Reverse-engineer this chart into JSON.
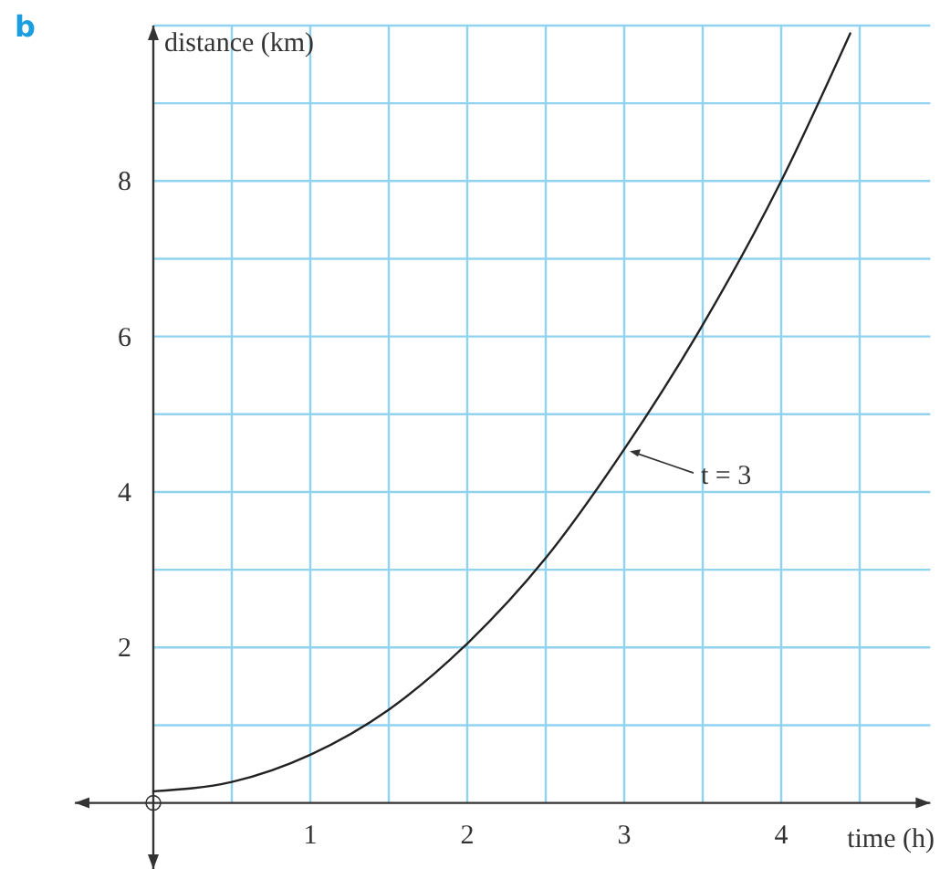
{
  "chart_data": {
    "type": "line",
    "xlabel": "time (h)",
    "ylabel": "distance (km)",
    "xlim": [
      -0.5,
      4.95
    ],
    "ylim": [
      -0.85,
      10
    ],
    "xticks": [
      {
        "value": 0.5,
        "label": null
      },
      1,
      {
        "value": 1.5,
        "label": null
      },
      2,
      {
        "value": 2.5,
        "label": null
      },
      3,
      {
        "value": 3.5,
        "label": null
      },
      4,
      {
        "value": 4.5,
        "label": null
      }
    ],
    "yticks": [
      {
        "value": 1,
        "label": null
      },
      2,
      {
        "value": 3,
        "label": null
      },
      4,
      {
        "value": 5,
        "label": null
      },
      6,
      {
        "value": 7,
        "label": null
      },
      8,
      {
        "value": 9,
        "label": null
      },
      {
        "value": 10,
        "label": null
      }
    ],
    "grid": true,
    "marker": "none",
    "line_style": "solid",
    "series": [
      {
        "color": "#222222",
        "x": [
          0,
          0.5,
          1,
          1.5,
          2,
          2.5,
          3,
          3.5,
          4,
          4.44
        ],
        "values": [
          0.15,
          0.27,
          0.62,
          1.2,
          2.05,
          3.15,
          4.55,
          6.15,
          8,
          9.9
        ]
      }
    ],
    "annotations": [
      "b",
      {
        "text": "t = 3",
        "x": 3,
        "y": 4.55
      }
    ]
  }
}
